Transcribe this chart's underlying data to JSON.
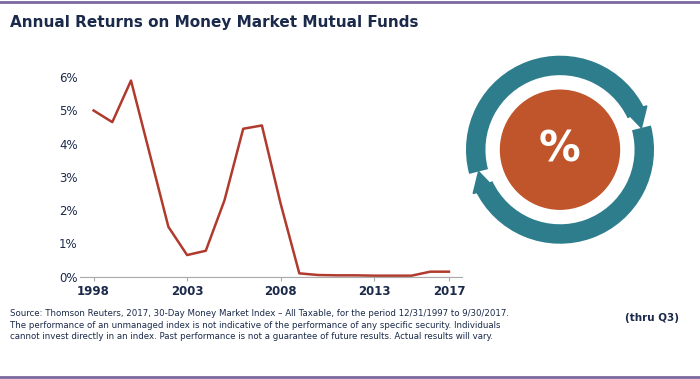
{
  "title": "Annual Returns on Money Market Mutual Funds",
  "years": [
    1998,
    1999,
    2000,
    2001,
    2002,
    2003,
    2004,
    2005,
    2006,
    2007,
    2008,
    2009,
    2010,
    2011,
    2012,
    2013,
    2014,
    2015,
    2016,
    2017
  ],
  "values": [
    5.0,
    4.65,
    5.9,
    3.7,
    1.5,
    0.65,
    0.78,
    2.3,
    4.45,
    4.55,
    2.2,
    0.1,
    0.05,
    0.04,
    0.04,
    0.03,
    0.03,
    0.03,
    0.15,
    0.15
  ],
  "line_color": "#B03A2E",
  "background_color": "#FFFFFF",
  "title_color": "#1B2A4A",
  "tick_color": "#1B2A4A",
  "ylim": [
    0,
    0.065
  ],
  "yticks": [
    0,
    0.01,
    0.02,
    0.03,
    0.04,
    0.05,
    0.06
  ],
  "ytick_labels": [
    "0%",
    "1%",
    "2%",
    "3%",
    "4%",
    "5%",
    "6%"
  ],
  "xtick_positions": [
    1998,
    2003,
    2008,
    2013,
    2017
  ],
  "xtick_labels": [
    "1998",
    "2003",
    "2008",
    "2013",
    "2017"
  ],
  "xlim": [
    1997.3,
    2017.7
  ],
  "source_text": "Source: Thomson Reuters, 2017, 30-Day Money Market Index – All Taxable, for the period 12/31/1997 to 9/30/2017.\nThe performance of an unmanaged index is not indicative of the performance of any specific security. Individuals\ncannot invest directly in an index. Past performance is not a guarantee of future results. Actual results will vary.",
  "thru_q3_text": "(thru Q3)",
  "teal_color": "#2E7D8C",
  "orange_color": "#C0542A",
  "border_color": "#7B68A0",
  "line_width": 1.8
}
